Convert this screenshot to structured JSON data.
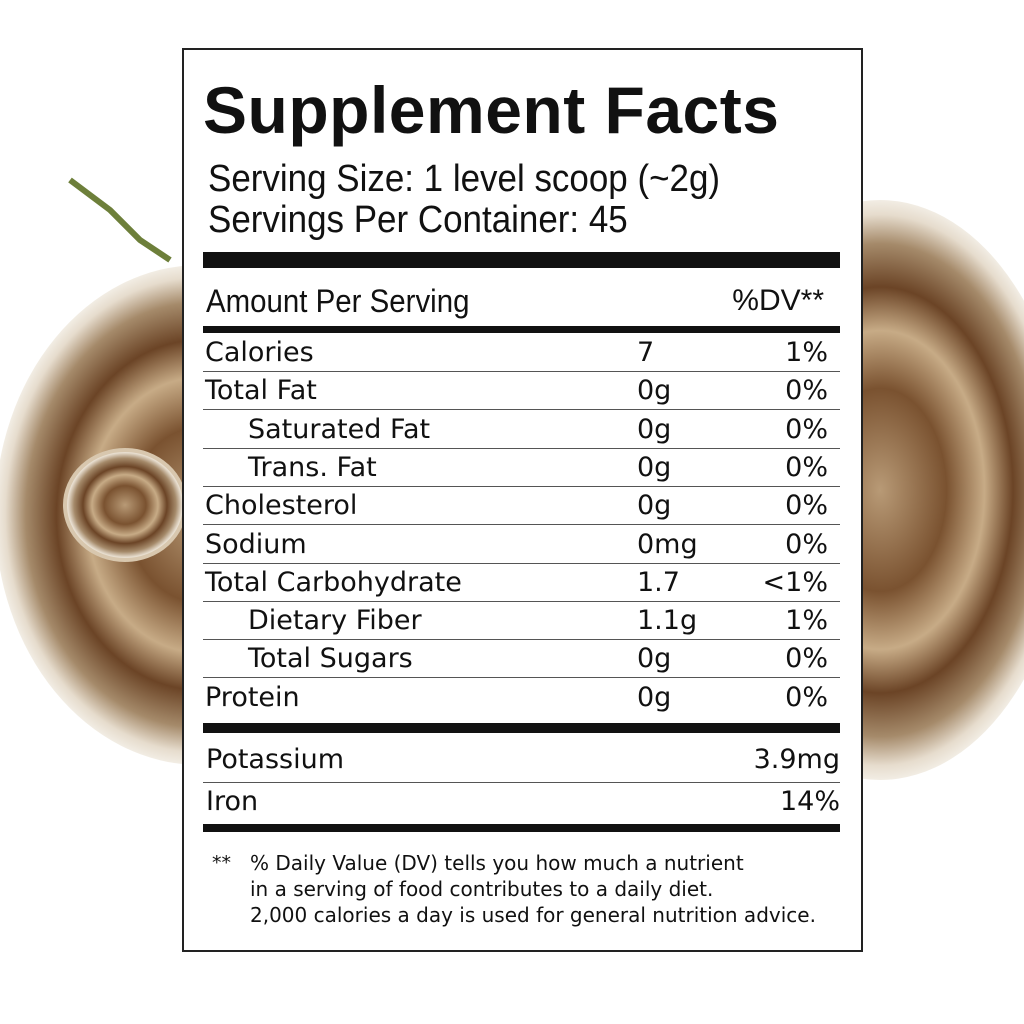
{
  "title": "Supplement Facts",
  "serving_size": "Serving Size: 1 level scoop (~2g)",
  "servings_per_container": "Servings Per Container:  45",
  "header": {
    "amount": "Amount Per Serving",
    "dv": "%DV**"
  },
  "rows": [
    {
      "name": "Calories",
      "amount": "7",
      "dv": "1%",
      "indent": false
    },
    {
      "name": "Total Fat",
      "amount": "0g",
      "dv": "0%",
      "indent": false
    },
    {
      "name": "Saturated Fat",
      "amount": "0g",
      "dv": "0%",
      "indent": true
    },
    {
      "name": "Trans. Fat",
      "amount": "0g",
      "dv": "0%",
      "indent": true
    },
    {
      "name": "Cholesterol",
      "amount": "0g",
      "dv": "0%",
      "indent": false
    },
    {
      "name": "Sodium",
      "amount": "0mg",
      "dv": "0%",
      "indent": false
    },
    {
      "name": "Total Carbohydrate",
      "amount": "1.7",
      "dv": "<1%",
      "indent": false
    },
    {
      "name": "Dietary Fiber",
      "amount": "1.1g",
      "dv": "1%",
      "indent": true
    },
    {
      "name": "Total Sugars",
      "amount": "0g",
      "dv": "0%",
      "indent": true
    },
    {
      "name": "Protein",
      "amount": "0g",
      "dv": "0%",
      "indent": false
    }
  ],
  "minerals": [
    {
      "name": "Potassium",
      "value": "3.9mg"
    },
    {
      "name": "Iron",
      "value": "14%"
    }
  ],
  "footnote": {
    "marker": "**",
    "lines": [
      "% Daily Value (DV) tells you how much a nutrient",
      "in a serving of food contributes to a daily diet.",
      "2,000 calories a day is used for general nutrition advice."
    ]
  }
}
